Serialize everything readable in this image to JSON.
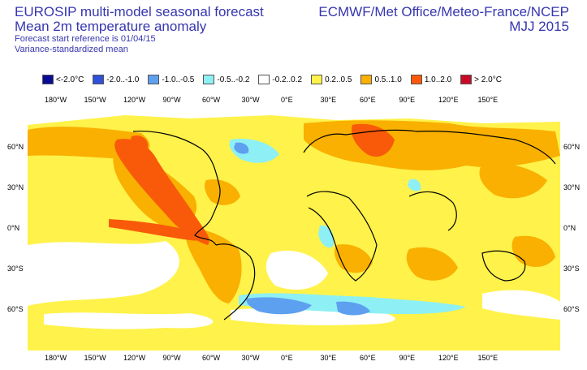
{
  "header": {
    "title_line1": "EUROSIP multi-model seasonal forecast",
    "title_line2": "Mean 2m temperature anomaly",
    "subtitle_line1": "Forecast start reference is 01/04/15",
    "subtitle_line2": "Variance-standardized mean",
    "source": "ECMWF/Met Office/Meteo-France/NCEP",
    "period": "MJJ 2015"
  },
  "legend": [
    {
      "label": "<-2.0°C",
      "color": "#0a0a96"
    },
    {
      "label": "-2.0..-1.0",
      "color": "#2f50d8"
    },
    {
      "label": "-1.0..-0.5",
      "color": "#5ea0f0"
    },
    {
      "label": "-0.5..-0.2",
      "color": "#8ef0f4"
    },
    {
      "label": "-0.2..0.2",
      "color": "#ffffff"
    },
    {
      "label": "0.2..0.5",
      "color": "#fff24a"
    },
    {
      "label": "0.5..1.0",
      "color": "#f9b000"
    },
    {
      "label": "1.0..2.0",
      "color": "#f85a0a"
    },
    {
      "label": "> 2.0°C",
      "color": "#c80a28"
    }
  ],
  "axes": {
    "lon_labels": [
      "180°W",
      "150°W",
      "120°W",
      "90°W",
      "60°W",
      "30°W",
      "0°E",
      "30°E",
      "60°E",
      "90°E",
      "120°E",
      "150°E"
    ],
    "lat_labels": [
      "60°N",
      "30°N",
      "0°N",
      "30°S",
      "60°S"
    ]
  }
}
